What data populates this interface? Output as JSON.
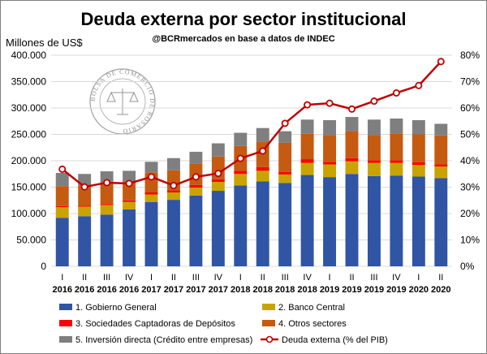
{
  "header": {
    "title": "Deuda externa por sector institucional",
    "subtitle": "@BCRmercados en base a datos de INDEC"
  },
  "watermark": {
    "text": "BOLSA DE COMERCIO DE ROSARIO",
    "icon": "scales-of-justice-icon"
  },
  "colors": {
    "gobierno": "#2f55a4",
    "banco_central": "#c9a300",
    "sociedades": "#ff0000",
    "otros": "#c55a11",
    "inversion": "#7f7f7f",
    "line": "#c00000",
    "grid": "#d9d9d9"
  },
  "chart_data": {
    "type": "bar",
    "stacked": true,
    "y_unit_label": "Millones de US$",
    "y_ticks": [
      "0",
      "50.000",
      "100.000",
      "150.000",
      "200.000",
      "250.000",
      "300.000",
      "350.000",
      "400.000"
    ],
    "y2_ticks": [
      "0%",
      "10%",
      "20%",
      "30%",
      "40%",
      "50%",
      "60%",
      "70%",
      "80%"
    ],
    "ylim": [
      0,
      400000
    ],
    "y2lim": [
      0,
      80
    ],
    "grid": true,
    "legend_position": "bottom",
    "categories": [
      {
        "quarter": "I",
        "year": "2016"
      },
      {
        "quarter": "II",
        "year": "2016"
      },
      {
        "quarter": "III",
        "year": "2016"
      },
      {
        "quarter": "IV",
        "year": "2016"
      },
      {
        "quarter": "I",
        "year": "2017"
      },
      {
        "quarter": "II",
        "year": "2017"
      },
      {
        "quarter": "III",
        "year": "2017"
      },
      {
        "quarter": "IV",
        "year": "2017"
      },
      {
        "quarter": "I",
        "year": "2018"
      },
      {
        "quarter": "II",
        "year": "2018"
      },
      {
        "quarter": "III",
        "year": "2018"
      },
      {
        "quarter": "IV",
        "year": "2018"
      },
      {
        "quarter": "I",
        "year": "2019"
      },
      {
        "quarter": "II",
        "year": "2019"
      },
      {
        "quarter": "III",
        "year": "2019"
      },
      {
        "quarter": "IV",
        "year": "2019"
      },
      {
        "quarter": "I",
        "year": "2020"
      },
      {
        "quarter": "II",
        "year": "2020"
      }
    ],
    "series": [
      {
        "name": "1. Gobierno General",
        "color_key": "gobierno",
        "axis": "left",
        "values": [
          92000,
          95000,
          98000,
          108000,
          122000,
          126000,
          134000,
          143000,
          153000,
          161000,
          158000,
          173000,
          169000,
          175000,
          171000,
          172000,
          170000,
          167000
        ]
      },
      {
        "name": "2. Banco Central",
        "color_key": "banco_central",
        "axis": "left",
        "values": [
          20000,
          18000,
          18000,
          14000,
          14000,
          14000,
          15000,
          17000,
          22000,
          20000,
          16000,
          23000,
          24000,
          24000,
          25000,
          24000,
          22000,
          22000
        ]
      },
      {
        "name": "3. Sociedades Captadoras de Depósitos",
        "color_key": "sociedades",
        "axis": "left",
        "values": [
          2000,
          2000,
          2000,
          3000,
          4000,
          4000,
          5000,
          5000,
          6000,
          7000,
          5000,
          7000,
          5000,
          6000,
          5000,
          5000,
          5000,
          4000
        ]
      },
      {
        "name": "4. Otros sectores",
        "color_key": "otros",
        "axis": "left",
        "values": [
          38000,
          38000,
          40000,
          35000,
          38000,
          38000,
          40000,
          43000,
          47000,
          48000,
          55000,
          48000,
          51000,
          51000,
          48000,
          51000,
          53000,
          55000
        ]
      },
      {
        "name": "5. Inversión directa (Crédito entre empresas)",
        "color_key": "inversion",
        "axis": "left",
        "values": [
          25000,
          22000,
          22000,
          21000,
          20000,
          23000,
          23000,
          25000,
          25000,
          26000,
          22000,
          27000,
          28000,
          27000,
          29000,
          28000,
          27000,
          22000
        ]
      },
      {
        "name": "Deuda externa (% del PIB)",
        "color_key": "line",
        "axis": "right",
        "type": "line",
        "values": [
          36.8,
          30.1,
          31.7,
          31.4,
          33.9,
          30.6,
          33.9,
          35.2,
          40.9,
          43.7,
          54.2,
          61.2,
          61.8,
          59.6,
          62.6,
          65.7,
          68.5,
          77.6
        ]
      }
    ]
  }
}
